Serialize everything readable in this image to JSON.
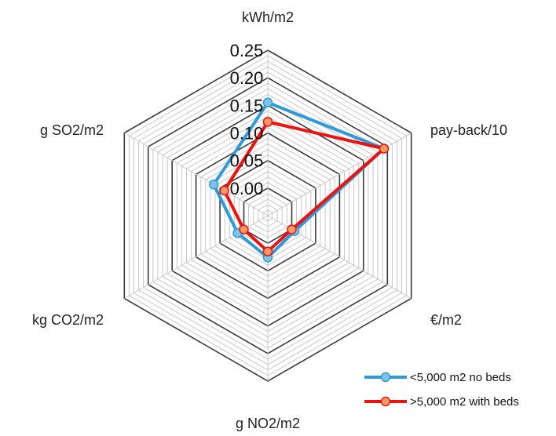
{
  "chart_data": {
    "type": "radar",
    "axes": [
      "kWh/m2",
      "pay-back/10",
      "€/m2",
      "g NO2/m2",
      "kg CO2/m2",
      "g SO2/m2"
    ],
    "ticks": [
      "0.00",
      "0.05",
      "0.10",
      "0.15",
      "0.20",
      "0.25"
    ],
    "rmin": -0.05,
    "rmax": 0.25,
    "series": [
      {
        "name": "<5,000 m2 no beds",
        "color": "#2e9bd6",
        "marker": "#7fc3ea",
        "values": [
          0.155,
          0.193,
          0.006,
          0.026,
          0.013,
          0.063
        ]
      },
      {
        "name": ">5,000 m2 with beds",
        "color": "#ee1111",
        "marker": "#f59a62",
        "values": [
          0.12,
          0.193,
          0.0,
          0.015,
          0.0,
          0.041
        ]
      }
    ]
  }
}
